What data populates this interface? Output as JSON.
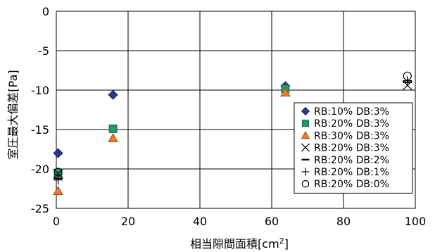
{
  "chart_data": {
    "type": "scatter",
    "title": "",
    "xlabel": "相当隙間面積[cm",
    "xlabel_sup": "2",
    "xlabel_end": "]",
    "ylabel": "室圧最大偏差[Pa]",
    "xlim": [
      0,
      100
    ],
    "ylim": [
      -25,
      0
    ],
    "xticks": [
      0,
      20,
      40,
      60,
      80,
      100
    ],
    "yticks": [
      0,
      -5,
      -10,
      -15,
      -20,
      -25
    ],
    "grid": true,
    "legend_position": "right",
    "series": [
      {
        "name": "RB:10% DB:3%",
        "marker": "diamond",
        "color": "#283a8c",
        "x": [
          0.5,
          15.8,
          63.8
        ],
        "y": [
          -18.0,
          -10.6,
          -9.5
        ]
      },
      {
        "name": "RB:20% DB:3%",
        "marker": "square",
        "color": "#1f9a6e",
        "x": [
          0.5,
          15.8,
          63.8
        ],
        "y": [
          -20.5,
          -14.9,
          -9.8
        ]
      },
      {
        "name": "RB:30% DB:3%",
        "marker": "triangle",
        "color": "#f07a2e",
        "x": [
          0.5,
          15.8,
          63.8
        ],
        "y": [
          -22.8,
          -16.1,
          -10.3
        ]
      },
      {
        "name": "RB:20% DB:3%",
        "marker": "x",
        "color": "#000000",
        "x": [
          0.5,
          97.8
        ],
        "y": [
          -20.6,
          -9.4
        ]
      },
      {
        "name": "RB:20% DB:2%",
        "marker": "dash",
        "color": "#000000",
        "x": [
          0.5,
          97.8
        ],
        "y": [
          -21.2,
          -9.0
        ]
      },
      {
        "name": "RB:20% DB:1%",
        "marker": "plus",
        "color": "#000000",
        "x": [
          0.5,
          97.8
        ],
        "y": [
          -21.4,
          -8.8
        ]
      },
      {
        "name": "RB:20% DB:0%",
        "marker": "circle",
        "color": "#000000",
        "x": [
          0.5,
          97.8
        ],
        "y": [
          -20.4,
          -8.2
        ]
      }
    ]
  }
}
